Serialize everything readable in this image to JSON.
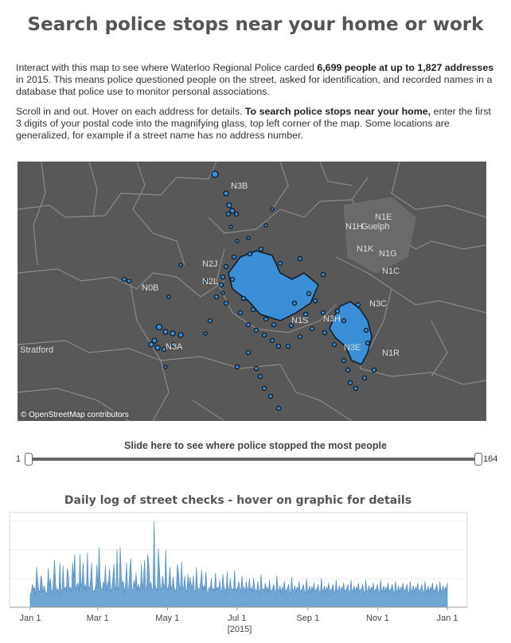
{
  "page": {
    "title": "Search police stops near your home or work",
    "intro_a1": "Interact with this map to see where Waterloo Regional Police carded ",
    "intro_a_bold": "6,699 people at up to 1,827 addresses",
    "intro_a2": " in 2015.  This means police questioned people on the street, asked for identification, and recorded names in a database that police use to monitor personal associations.",
    "intro_b1": "Scroll in and out. Hover on each address for details. ",
    "intro_b_bold": "To search police stops near your home,",
    "intro_b2": " enter the first 3 digits of your postal code into the magnifying glass, top left corner of the map. Some locations are generalized, for example if a street name has no address number."
  },
  "map": {
    "attribution": "© OpenStreetMap contributors",
    "labels": [
      "N3B",
      "N2J",
      "N2L",
      "N0B",
      "N3A",
      "Stratford",
      "N1E",
      "N1H",
      "Guelph",
      "N1K",
      "N1G",
      "N1C",
      "N3C",
      "N3H",
      "N1R",
      "N1S",
      "N3E"
    ],
    "colors": {
      "bg": "#585858",
      "marker": "#3a8fd6",
      "marker_stroke": "#0d1a26",
      "border": "#8e8e8e"
    }
  },
  "slider": {
    "title": "Slide here to see where police stopped the most people",
    "min": "1",
    "max": "164"
  },
  "chart_data": {
    "type": "area",
    "title": "Daily log of street checks - hover on graphic for details",
    "xlabel": "[2015]",
    "x_ticks": [
      "Jan 1",
      "Mar 1",
      "May 1",
      "Jul 1",
      "Sep 1",
      "Nov 1",
      "Jan 1"
    ],
    "x_range": [
      "2015-01-01",
      "2016-01-01"
    ],
    "ylim": [
      0,
      66
    ],
    "y_gridlines": [
      20,
      40,
      60
    ],
    "color": "#6fa6d3",
    "series": [
      {
        "values": [
          9,
          10,
          16,
          12,
          14,
          8,
          28,
          19,
          12,
          10,
          22,
          19,
          10,
          15,
          12,
          9,
          11,
          27,
          14,
          20,
          12,
          10,
          21,
          33,
          16,
          11,
          13,
          9,
          31,
          13,
          10,
          29,
          12,
          14,
          11,
          27,
          22,
          12,
          14,
          10,
          31,
          20,
          37,
          12,
          15,
          17,
          11,
          37,
          14,
          18,
          31,
          12,
          16,
          11,
          38,
          14,
          13,
          19,
          31,
          12,
          11,
          12,
          16,
          30,
          13,
          42,
          20,
          13,
          12,
          18,
          14,
          29,
          11,
          17,
          18,
          27,
          11,
          13,
          20,
          30,
          15,
          12,
          40,
          12,
          14,
          42,
          22,
          16,
          18,
          10,
          16,
          31,
          12,
          13,
          26,
          34,
          13,
          12,
          19,
          14,
          24,
          12,
          16,
          14,
          11,
          30,
          13,
          20,
          33,
          14,
          12,
          37,
          30,
          14,
          18,
          12,
          13,
          60,
          16,
          13,
          12,
          41,
          28,
          14,
          12,
          22,
          16,
          13,
          40,
          14,
          12,
          17,
          28,
          12,
          15,
          21,
          14,
          11,
          13,
          30,
          24,
          15,
          12,
          32,
          13,
          14,
          22,
          11,
          12,
          23,
          14,
          21,
          16,
          13,
          22,
          12,
          11,
          28,
          14,
          12,
          13,
          18,
          26,
          12,
          15,
          13,
          25,
          11,
          10,
          14,
          12,
          20,
          12,
          13,
          11,
          24,
          12,
          14,
          12,
          19,
          12,
          11,
          23,
          14,
          13,
          10,
          25,
          12,
          13,
          20,
          12,
          13,
          11,
          26,
          13,
          12,
          14,
          18,
          13,
          11,
          22,
          12,
          14,
          10,
          18,
          13,
          12,
          20,
          11,
          14,
          10,
          20,
          13,
          12,
          11,
          18,
          12,
          10,
          23,
          12,
          13,
          11,
          17,
          12,
          14,
          10,
          19,
          12,
          11,
          13,
          16,
          11,
          10,
          22,
          12,
          12,
          15,
          10,
          14,
          12,
          18,
          11,
          12,
          13,
          16,
          11,
          10,
          21,
          11,
          12,
          15,
          10,
          14,
          12,
          18,
          11,
          12,
          13,
          16,
          11,
          10,
          20,
          11,
          12,
          15,
          10,
          14,
          12,
          17,
          11,
          12,
          13,
          16,
          11,
          10,
          20,
          11,
          12,
          15,
          10,
          14,
          12,
          17,
          11,
          12,
          13,
          16,
          11,
          10,
          19,
          11,
          12,
          15,
          10,
          14,
          12,
          17,
          11,
          12,
          13,
          16,
          11,
          10,
          19,
          11,
          12,
          15,
          10,
          14,
          12,
          17,
          11,
          12,
          13,
          16,
          11,
          10,
          19,
          11,
          12,
          15,
          10,
          14,
          12,
          17,
          11,
          12,
          13,
          16,
          11,
          10,
          19,
          11,
          12,
          15,
          10,
          14,
          12,
          17,
          11,
          12,
          13,
          16,
          11,
          10,
          18,
          11,
          12,
          15,
          10,
          14,
          12,
          17,
          11,
          12,
          13,
          16,
          11,
          10,
          18,
          11,
          12,
          15,
          10,
          14,
          12,
          17,
          11,
          12,
          13,
          16,
          11,
          10,
          18,
          11,
          12,
          15,
          10,
          14,
          12,
          17,
          11,
          12,
          13,
          16,
          11,
          10,
          18,
          11,
          12,
          15,
          10,
          14,
          12,
          17
        ]
      }
    ]
  }
}
